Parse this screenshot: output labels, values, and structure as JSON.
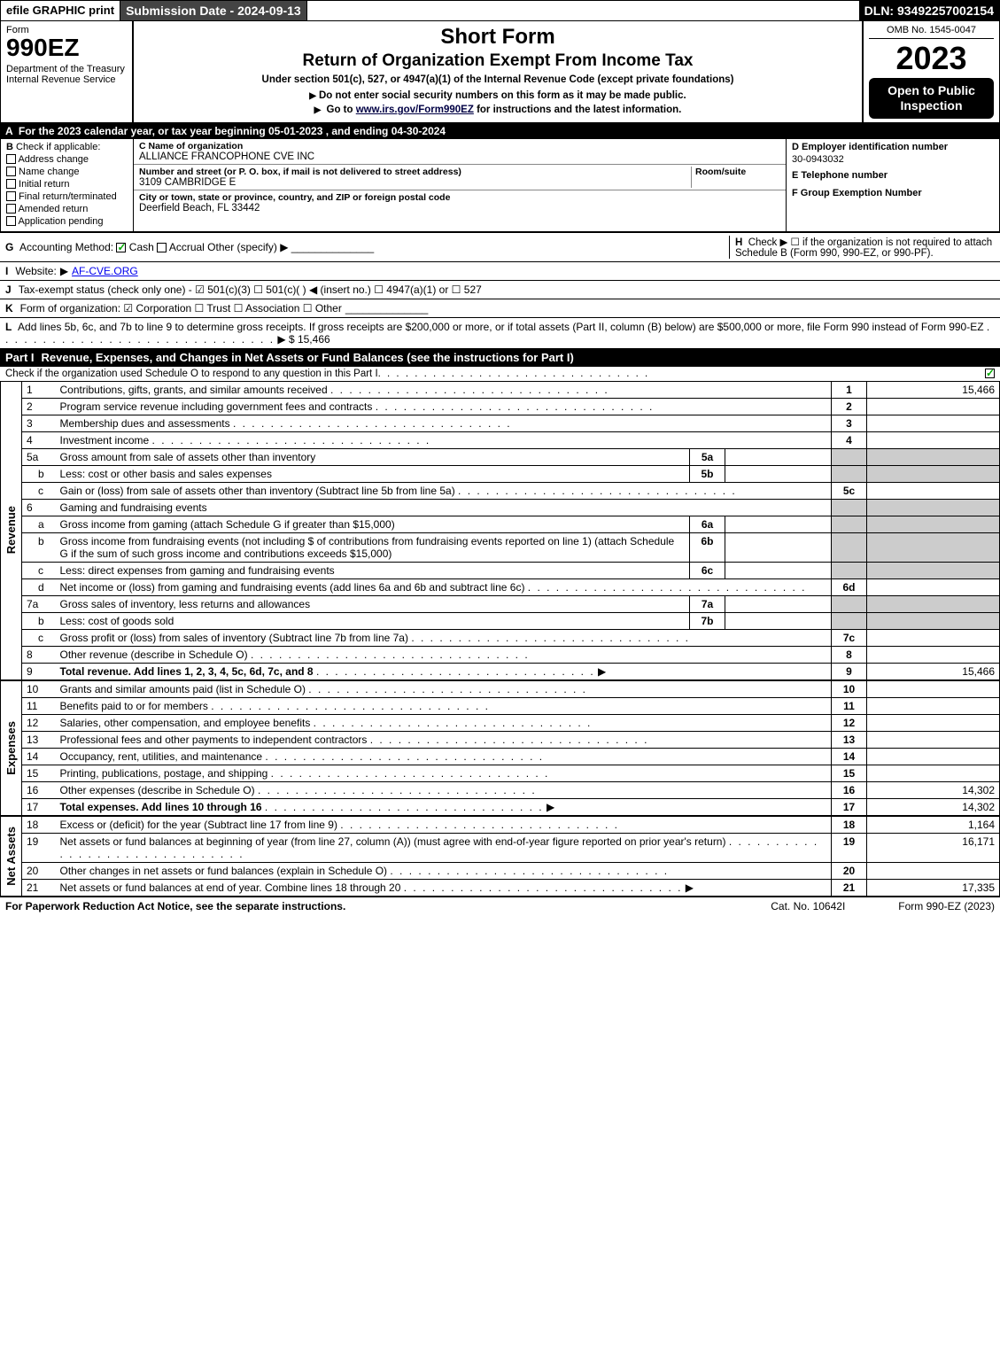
{
  "topbar": {
    "efile": "efile GRAPHIC print",
    "submission": "Submission Date - 2024-09-13",
    "dln": "DLN: 93492257002154"
  },
  "header": {
    "form": "Form",
    "formno": "990EZ",
    "dept": "Department of the Treasury\nInternal Revenue Service",
    "short": "Short Form",
    "title": "Return of Organization Exempt From Income Tax",
    "sub": "Under section 501(c), 527, or 4947(a)(1) of the Internal Revenue Code (except private foundations)",
    "note1": "Do not enter social security numbers on this form as it may be made public.",
    "note2_pre": "Go to ",
    "note2_link": "www.irs.gov/Form990EZ",
    "note2_post": " for instructions and the latest information.",
    "omb": "OMB No. 1545-0047",
    "year": "2023",
    "open": "Open to Public Inspection"
  },
  "A": "For the 2023 calendar year, or tax year beginning 05-01-2023 , and ending 04-30-2024",
  "B": {
    "hdr": "Check if applicable:",
    "opts": [
      "Address change",
      "Name change",
      "Initial return",
      "Final return/terminated",
      "Amended return",
      "Application pending"
    ]
  },
  "C": {
    "name_lbl": "C Name of organization",
    "name": "ALLIANCE FRANCOPHONE CVE INC",
    "street_lbl": "Number and street (or P. O. box, if mail is not delivered to street address)",
    "room_lbl": "Room/suite",
    "street": "3109 CAMBRIDGE E",
    "city_lbl": "City or town, state or province, country, and ZIP or foreign postal code",
    "city": "Deerfield Beach, FL  33442"
  },
  "D": {
    "ein_lbl": "D Employer identification number",
    "ein": "30-0943032",
    "tel_lbl": "E Telephone number",
    "tel": "",
    "grp_lbl": "F Group Exemption Number",
    "grp": ""
  },
  "G": {
    "lbl": "Accounting Method:",
    "cash": "Cash",
    "accrual": "Accrual",
    "other": "Other (specify)"
  },
  "H": "Check ▶  ☐ if the organization is not required to attach Schedule B (Form 990, 990-EZ, or 990-PF).",
  "I": {
    "lbl": "Website:",
    "val": "AF-CVE.ORG"
  },
  "J": "Tax-exempt status (check only one) - ☑ 501(c)(3) ☐ 501(c)(  ) ◀ (insert no.) ☐ 4947(a)(1) or ☐ 527",
  "K": "Form of organization:  ☑ Corporation  ☐ Trust  ☐ Association  ☐ Other",
  "L": {
    "text": "Add lines 5b, 6c, and 7b to line 9 to determine gross receipts. If gross receipts are $200,000 or more, or if total assets (Part II, column (B) below) are $500,000 or more, file Form 990 instead of Form 990-EZ",
    "amt": "$ 15,466"
  },
  "partI": {
    "title": "Revenue, Expenses, and Changes in Net Assets or Fund Balances (see the instructions for Part I)",
    "sub": "Check if the organization used Schedule O to respond to any question in this Part I"
  },
  "revenue_lines": [
    {
      "n": "1",
      "d": "Contributions, gifts, grants, and similar amounts received",
      "rn": "1",
      "amt": "15,466"
    },
    {
      "n": "2",
      "d": "Program service revenue including government fees and contracts",
      "rn": "2",
      "amt": ""
    },
    {
      "n": "3",
      "d": "Membership dues and assessments",
      "rn": "3",
      "amt": ""
    },
    {
      "n": "4",
      "d": "Investment income",
      "rn": "4",
      "amt": ""
    },
    {
      "n": "5a",
      "d": "Gross amount from sale of assets other than inventory",
      "sl": "5a",
      "sv": "",
      "grey": true
    },
    {
      "n": "b",
      "d": "Less: cost or other basis and sales expenses",
      "sl": "5b",
      "sv": "",
      "grey": true,
      "indent": true
    },
    {
      "n": "c",
      "d": "Gain or (loss) from sale of assets other than inventory (Subtract line 5b from line 5a)",
      "rn": "5c",
      "amt": "",
      "indent": true
    },
    {
      "n": "6",
      "d": "Gaming and fundraising events",
      "grey": true
    },
    {
      "n": "a",
      "d": "Gross income from gaming (attach Schedule G if greater than $15,000)",
      "sl": "6a",
      "sv": "",
      "grey": true,
      "indent": true
    },
    {
      "n": "b",
      "d": "Gross income from fundraising events (not including $             of contributions from fundraising events reported on line 1) (attach Schedule G if the sum of such gross income and contributions exceeds $15,000)",
      "sl": "6b",
      "sv": "",
      "grey": true,
      "indent": true
    },
    {
      "n": "c",
      "d": "Less: direct expenses from gaming and fundraising events",
      "sl": "6c",
      "sv": "",
      "grey": true,
      "indent": true
    },
    {
      "n": "d",
      "d": "Net income or (loss) from gaming and fundraising events (add lines 6a and 6b and subtract line 6c)",
      "rn": "6d",
      "amt": "",
      "indent": true
    },
    {
      "n": "7a",
      "d": "Gross sales of inventory, less returns and allowances",
      "sl": "7a",
      "sv": "",
      "grey": true
    },
    {
      "n": "b",
      "d": "Less: cost of goods sold",
      "sl": "7b",
      "sv": "",
      "grey": true,
      "indent": true
    },
    {
      "n": "c",
      "d": "Gross profit or (loss) from sales of inventory (Subtract line 7b from line 7a)",
      "rn": "7c",
      "amt": "",
      "indent": true
    },
    {
      "n": "8",
      "d": "Other revenue (describe in Schedule O)",
      "rn": "8",
      "amt": ""
    },
    {
      "n": "9",
      "d": "Total revenue. Add lines 1, 2, 3, 4, 5c, 6d, 7c, and 8",
      "rn": "9",
      "amt": "15,466",
      "bold": true,
      "arrow": true
    }
  ],
  "expense_lines": [
    {
      "n": "10",
      "d": "Grants and similar amounts paid (list in Schedule O)",
      "rn": "10",
      "amt": ""
    },
    {
      "n": "11",
      "d": "Benefits paid to or for members",
      "rn": "11",
      "amt": ""
    },
    {
      "n": "12",
      "d": "Salaries, other compensation, and employee benefits",
      "rn": "12",
      "amt": ""
    },
    {
      "n": "13",
      "d": "Professional fees and other payments to independent contractors",
      "rn": "13",
      "amt": ""
    },
    {
      "n": "14",
      "d": "Occupancy, rent, utilities, and maintenance",
      "rn": "14",
      "amt": ""
    },
    {
      "n": "15",
      "d": "Printing, publications, postage, and shipping",
      "rn": "15",
      "amt": ""
    },
    {
      "n": "16",
      "d": "Other expenses (describe in Schedule O)",
      "rn": "16",
      "amt": "14,302"
    },
    {
      "n": "17",
      "d": "Total expenses. Add lines 10 through 16",
      "rn": "17",
      "amt": "14,302",
      "bold": true,
      "arrow": true
    }
  ],
  "net_lines": [
    {
      "n": "18",
      "d": "Excess or (deficit) for the year (Subtract line 17 from line 9)",
      "rn": "18",
      "amt": "1,164"
    },
    {
      "n": "19",
      "d": "Net assets or fund balances at beginning of year (from line 27, column (A)) (must agree with end-of-year figure reported on prior year's return)",
      "rn": "19",
      "amt": "16,171"
    },
    {
      "n": "20",
      "d": "Other changes in net assets or fund balances (explain in Schedule O)",
      "rn": "20",
      "amt": ""
    },
    {
      "n": "21",
      "d": "Net assets or fund balances at end of year. Combine lines 18 through 20",
      "rn": "21",
      "amt": "17,335",
      "arrow": true
    }
  ],
  "footer": {
    "l": "For Paperwork Reduction Act Notice, see the separate instructions.",
    "m": "Cat. No. 10642I",
    "r": "Form 990-EZ (2023)"
  },
  "labels": {
    "revenue": "Revenue",
    "expenses": "Expenses",
    "net": "Net Assets"
  }
}
